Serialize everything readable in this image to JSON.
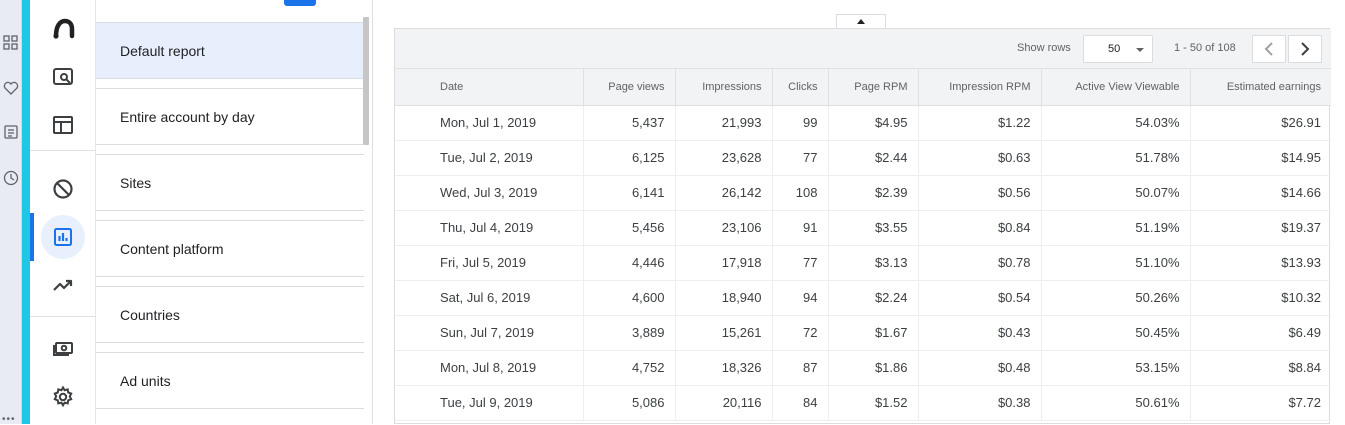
{
  "outer_strip": {
    "icons": [
      "grid-icon",
      "heart-icon",
      "document-icon",
      "history-icon"
    ]
  },
  "nav_rail": {
    "items": [
      {
        "name": "adsense-logo-icon"
      },
      {
        "name": "search-reports-icon"
      },
      {
        "name": "sites-layout-icon"
      },
      {
        "name": "blocking-controls-icon"
      },
      {
        "name": "reports-icon",
        "active": true
      },
      {
        "name": "optimization-trending-icon"
      },
      {
        "name": "payments-icon"
      },
      {
        "name": "settings-gear-icon"
      }
    ]
  },
  "report_list": {
    "items": [
      {
        "label": "Default report",
        "selected": true
      },
      {
        "label": "Entire account by day"
      },
      {
        "label": "Sites"
      },
      {
        "label": "Content platform"
      },
      {
        "label": "Countries"
      },
      {
        "label": "Ad units"
      }
    ]
  },
  "toolbar": {
    "show_rows_label": "Show rows",
    "rows_value": "50",
    "page_range": "1 - 50 of 108"
  },
  "table": {
    "headers": [
      "Date",
      "Page views",
      "Impressions",
      "Clicks",
      "Page RPM",
      "Impression RPM",
      "Active View Viewable",
      "Estimated earnings"
    ],
    "rows": [
      [
        "Mon, Jul 1, 2019",
        "5,437",
        "21,993",
        "99",
        "$4.95",
        "$1.22",
        "54.03%",
        "$26.91"
      ],
      [
        "Tue, Jul 2, 2019",
        "6,125",
        "23,628",
        "77",
        "$2.44",
        "$0.63",
        "51.78%",
        "$14.95"
      ],
      [
        "Wed, Jul 3, 2019",
        "6,141",
        "26,142",
        "108",
        "$2.39",
        "$0.56",
        "50.07%",
        "$14.66"
      ],
      [
        "Thu, Jul 4, 2019",
        "5,456",
        "23,106",
        "91",
        "$3.55",
        "$0.84",
        "51.19%",
        "$19.37"
      ],
      [
        "Fri, Jul 5, 2019",
        "4,446",
        "17,918",
        "77",
        "$3.13",
        "$0.78",
        "51.10%",
        "$13.93"
      ],
      [
        "Sat, Jul 6, 2019",
        "4,600",
        "18,940",
        "94",
        "$2.24",
        "$0.54",
        "50.26%",
        "$10.32"
      ],
      [
        "Sun, Jul 7, 2019",
        "3,889",
        "15,261",
        "72",
        "$1.67",
        "$0.43",
        "50.45%",
        "$6.49"
      ],
      [
        "Mon, Jul 8, 2019",
        "4,752",
        "18,326",
        "87",
        "$1.86",
        "$0.48",
        "53.15%",
        "$8.84"
      ],
      [
        "Tue, Jul 9, 2019",
        "5,086",
        "20,116",
        "84",
        "$1.52",
        "$0.38",
        "50.61%",
        "$7.72"
      ]
    ]
  },
  "colors": {
    "accent": "#1a73e8",
    "selected_bg": "#e8effc",
    "cyan_bar": "#1ec7e3"
  }
}
